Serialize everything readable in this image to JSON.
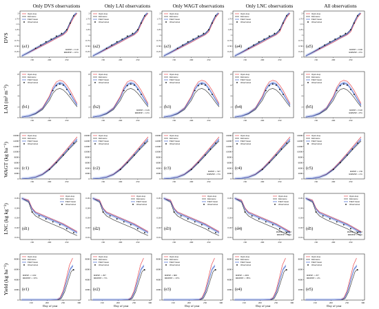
{
  "figure": {
    "column_titles": [
      "Only DVS observations",
      "Only LAI observations",
      "Only WAGT observations",
      "Only LNC observations",
      "All observations"
    ],
    "row_labels": [
      "DVS",
      "LAI (m² m⁻²)",
      "WAGT (kg ha⁻¹)",
      "LNC (kg kg⁻¹)",
      "Yield (kg ha⁻¹)"
    ],
    "xlabel": "Day of year",
    "colors": {
      "open_loop": "#e8474c",
      "reference": "#3b3b3b",
      "enkf_mean": "#3a5fcd",
      "enkf_band": "#b9c8ef",
      "observation": "#000000"
    }
  },
  "chart_data": [
    {
      "type": "line",
      "row_label": "DVS",
      "x_ticks": [
        150,
        200,
        250
      ],
      "y_ticks": [
        0.0,
        0.25,
        0.5,
        0.75,
        1.0,
        1.25,
        1.5,
        1.75,
        2.0
      ],
      "xlim": [
        115,
        290
      ],
      "ylim": [
        0,
        2.1
      ],
      "panels": [
        {
          "label": "(a1)",
          "stats": [
            "RMSE = 0.10",
            "RRMSE = 10%"
          ]
        },
        {
          "label": "(a2)",
          "stats": []
        },
        {
          "label": "(a3)",
          "stats": []
        },
        {
          "label": "(a4)",
          "stats": []
        },
        {
          "label": "(a5)",
          "stats": [
            "RMSE = 0.06",
            "RRMSE = 6%"
          ]
        }
      ],
      "legend": [
        "Open-loop",
        "Reference",
        "EnKF mean",
        "Observation"
      ],
      "legend_position": "top-left",
      "series": {
        "open_loop": {
          "x": [
            120,
            140,
            160,
            180,
            200,
            220,
            240,
            250,
            260,
            270,
            280
          ],
          "y": [
            0.05,
            0.2,
            0.36,
            0.52,
            0.68,
            0.86,
            1.02,
            1.15,
            1.5,
            1.8,
            2.0
          ]
        },
        "reference": {
          "x": [
            120,
            140,
            160,
            180,
            200,
            220,
            240,
            250,
            260,
            270,
            278
          ],
          "y": [
            0.05,
            0.22,
            0.4,
            0.58,
            0.75,
            0.92,
            1.08,
            1.25,
            1.6,
            1.9,
            2.0
          ]
        },
        "enkf_mean": {
          "x": [
            120,
            140,
            160,
            180,
            200,
            220,
            240,
            250,
            260,
            270,
            278
          ],
          "y": [
            0.05,
            0.21,
            0.39,
            0.56,
            0.73,
            0.9,
            1.06,
            1.22,
            1.57,
            1.88,
            2.0
          ]
        }
      },
      "observations": {
        "x": [
          160,
          175,
          190,
          205,
          220,
          235,
          250,
          260,
          270
        ],
        "y": [
          0.4,
          0.55,
          0.7,
          0.82,
          0.96,
          1.08,
          1.25,
          1.55,
          1.88
        ]
      }
    },
    {
      "type": "line",
      "row_label": "LAI (m² m⁻²)",
      "x_ticks": [
        150,
        200,
        250
      ],
      "y_ticks": [
        0,
        2,
        4,
        6,
        8
      ],
      "xlim": [
        115,
        290
      ],
      "ylim": [
        0,
        8.5
      ],
      "panels": [
        {
          "label": "(b1)",
          "stats": []
        },
        {
          "label": "(b2)",
          "stats": [
            "RMSE = 0.29",
            "RRMSE = 12%"
          ]
        },
        {
          "label": "(b3)",
          "stats": []
        },
        {
          "label": "(b4)",
          "stats": []
        },
        {
          "label": "(b5)",
          "stats": [
            "RMSE = 0.20",
            "RRMSE = 8%"
          ]
        }
      ],
      "legend": [
        "Open-loop",
        "Reference",
        "EnKF mean",
        "Observation"
      ],
      "legend_position": "top-left",
      "series": {
        "open_loop": {
          "x": [
            120,
            140,
            160,
            180,
            200,
            210,
            220,
            230,
            240,
            250,
            260,
            270,
            280
          ],
          "y": [
            0.1,
            0.3,
            0.8,
            1.8,
            4.0,
            5.6,
            6.6,
            6.9,
            6.7,
            6.0,
            5.0,
            3.8,
            2.6
          ]
        },
        "reference": {
          "x": [
            120,
            140,
            160,
            180,
            200,
            210,
            220,
            230,
            240,
            250,
            260,
            270,
            280
          ],
          "y": [
            0.1,
            0.3,
            0.7,
            1.5,
            3.2,
            4.5,
            5.2,
            5.4,
            5.1,
            4.5,
            3.7,
            2.8,
            2.0
          ]
        },
        "enkf_mean": {
          "x": [
            120,
            140,
            160,
            180,
            200,
            210,
            220,
            230,
            240,
            250,
            260,
            270,
            280
          ],
          "y": [
            0.1,
            0.3,
            0.8,
            1.7,
            3.7,
            5.2,
            6.1,
            6.4,
            6.2,
            5.4,
            4.4,
            3.3,
            2.3
          ]
        }
      },
      "observations": {
        "x": [
          210,
          220,
          230,
          240,
          250,
          260
        ],
        "y": [
          5.0,
          5.9,
          6.2,
          6.0,
          5.2,
          4.3
        ]
      }
    },
    {
      "type": "line",
      "row_label": "WAGT (kg ha⁻¹)",
      "x_ticks": [
        150,
        200,
        250
      ],
      "y_ticks": [
        0,
        2000,
        4000,
        6000,
        8000,
        10000,
        12000,
        14000,
        16000
      ],
      "xlim": [
        115,
        290
      ],
      "ylim": [
        0,
        17000
      ],
      "panels": [
        {
          "label": "(c1)",
          "stats": []
        },
        {
          "label": "(c2)",
          "stats": []
        },
        {
          "label": "(c3)",
          "stats": [
            "RMSE = 327",
            "RRMSE = 5%"
          ]
        },
        {
          "label": "(c4)",
          "stats": []
        },
        {
          "label": "(c5)",
          "stats": [
            "RMSE = 136",
            "RRMSE = 2%"
          ]
        }
      ],
      "legend": [
        "Open-loop",
        "Reference",
        "EnKF mean",
        "Observation"
      ],
      "legend_position": "top-left",
      "series": {
        "open_loop": {
          "x": [
            120,
            140,
            160,
            180,
            200,
            220,
            240,
            260,
            280
          ],
          "y": [
            50,
            200,
            700,
            1800,
            3800,
            6500,
            9500,
            12500,
            15500
          ]
        },
        "reference": {
          "x": [
            120,
            140,
            160,
            180,
            200,
            220,
            240,
            260,
            280
          ],
          "y": [
            50,
            180,
            620,
            1600,
            3400,
            5900,
            8600,
            11400,
            14000
          ]
        },
        "enkf_mean": {
          "x": [
            120,
            140,
            160,
            180,
            200,
            220,
            240,
            260,
            280
          ],
          "y": [
            50,
            190,
            660,
            1700,
            3600,
            6200,
            9000,
            11900,
            14600
          ]
        }
      },
      "observations": {
        "x": [
          200,
          220,
          240,
          255,
          270
        ],
        "y": [
          3500,
          6000,
          8800,
          11000,
          13200
        ]
      }
    },
    {
      "type": "line",
      "row_label": "LNC (kg kg⁻¹)",
      "x_ticks": [
        150,
        200,
        250
      ],
      "y_ticks": [
        0.01,
        0.02,
        0.03,
        0.04,
        0.05
      ],
      "xlim": [
        115,
        290
      ],
      "ylim": [
        0.008,
        0.055
      ],
      "panels": [
        {
          "label": "(d1)",
          "stats": []
        },
        {
          "label": "(d2)",
          "stats": []
        },
        {
          "label": "(d3)",
          "stats": []
        },
        {
          "label": "(d4)",
          "stats": [
            "RMSE = 0.0032",
            "RRMSE = 10%"
          ]
        },
        {
          "label": "(d5)",
          "stats": [
            "RMSE = 0.0032",
            "RRMSE = 10%"
          ]
        }
      ],
      "legend": [
        "Open-loop",
        "Reference",
        "EnKF mean",
        "Observation"
      ],
      "legend_position": "top-right",
      "series": {
        "open_loop": {
          "x": [
            120,
            140,
            150,
            160,
            180,
            200,
            220,
            240,
            260,
            280
          ],
          "y": [
            0.05,
            0.048,
            0.04,
            0.036,
            0.033,
            0.03,
            0.027,
            0.024,
            0.02,
            0.016
          ]
        },
        "reference": {
          "x": [
            120,
            140,
            150,
            160,
            180,
            200,
            220,
            240,
            260,
            280
          ],
          "y": [
            0.05,
            0.046,
            0.036,
            0.032,
            0.028,
            0.025,
            0.022,
            0.019,
            0.015,
            0.012
          ]
        },
        "enkf_mean": {
          "x": [
            120,
            140,
            150,
            160,
            180,
            200,
            220,
            240,
            260,
            280
          ],
          "y": [
            0.05,
            0.047,
            0.039,
            0.035,
            0.032,
            0.029,
            0.026,
            0.023,
            0.019,
            0.015
          ]
        }
      },
      "observations": {
        "x": [
          150,
          170,
          190,
          210,
          230,
          250,
          270
        ],
        "y": [
          0.036,
          0.032,
          0.029,
          0.026,
          0.023,
          0.019,
          0.015
        ]
      }
    },
    {
      "type": "line",
      "row_label": "Yield (kg ha⁻¹)",
      "x_ticks": [
        150,
        200,
        250,
        300
      ],
      "y_ticks": [
        0,
        2000,
        4000,
        6000,
        8000
      ],
      "xlim": [
        115,
        305
      ],
      "ylim": [
        0,
        9000
      ],
      "panels": [
        {
          "label": "(e1)",
          "stats": [
            "RMSE = 1102",
            "RRMSE = 19%"
          ]
        },
        {
          "label": "(e2)",
          "stats": [
            "RMSE = 297",
            "RRMSE = 5%"
          ]
        },
        {
          "label": "(e3)",
          "stats": [
            "RMSE = 600",
            "RRMSE = 10%"
          ]
        },
        {
          "label": "(e4)",
          "stats": [
            "RMSE = 2201",
            "RRMSE = 38%"
          ]
        },
        {
          "label": "(e5)",
          "stats": [
            "RMSE = 257",
            "RRMSE = 4%"
          ]
        }
      ],
      "legend": [
        "Open-loop",
        "Reference",
        "EnKF mean",
        "Observation"
      ],
      "legend_position": "top-left",
      "series": {
        "open_loop": {
          "x": [
            120,
            200,
            230,
            240,
            250,
            260,
            270,
            280
          ],
          "y": [
            0,
            0,
            50,
            400,
            1800,
            4200,
            6800,
            8200
          ]
        },
        "reference": {
          "x": [
            120,
            200,
            235,
            245,
            255,
            265,
            275,
            282
          ],
          "y": [
            0,
            0,
            50,
            350,
            1600,
            3600,
            5500,
            6000
          ]
        },
        "enkf_mean": {
          "x": [
            120,
            200,
            232,
            242,
            252,
            262,
            272,
            281
          ],
          "y": [
            0,
            0,
            50,
            380,
            1700,
            3900,
            6000,
            6700
          ]
        }
      },
      "observations": {
        "x": [
          283
        ],
        "y": [
          5900
        ]
      }
    }
  ]
}
